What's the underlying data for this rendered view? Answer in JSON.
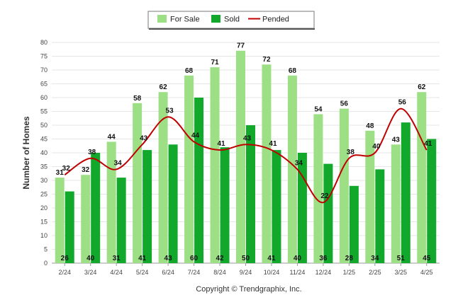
{
  "chart_data": {
    "type": "bar",
    "ylabel": "Number of Homes",
    "ylim": [
      0,
      80
    ],
    "ytick_step": 5,
    "grid": true,
    "legend_position": "top-center",
    "categories": [
      "2/24",
      "3/24",
      "4/24",
      "5/24",
      "6/24",
      "7/24",
      "8/24",
      "9/24",
      "10/24",
      "11/24",
      "12/24",
      "1/25",
      "2/25",
      "3/25",
      "4/25"
    ],
    "series": [
      {
        "name": "For Sale",
        "kind": "bar",
        "color": "#9ddf85",
        "values": [
          31,
          32,
          44,
          58,
          62,
          68,
          71,
          77,
          72,
          68,
          54,
          56,
          48,
          43,
          62
        ]
      },
      {
        "name": "Sold",
        "kind": "bar",
        "color": "#12a82c",
        "values": [
          26,
          40,
          31,
          41,
          43,
          60,
          42,
          50,
          41,
          40,
          36,
          28,
          34,
          51,
          45
        ]
      },
      {
        "name": "Pended",
        "kind": "line",
        "color": "#c00000",
        "values": [
          32,
          38,
          34,
          43,
          53,
          44,
          41,
          43,
          41,
          34,
          22,
          38,
          40,
          56,
          41
        ]
      }
    ],
    "copyright": "Copyright © Trendgraphix, Inc."
  }
}
